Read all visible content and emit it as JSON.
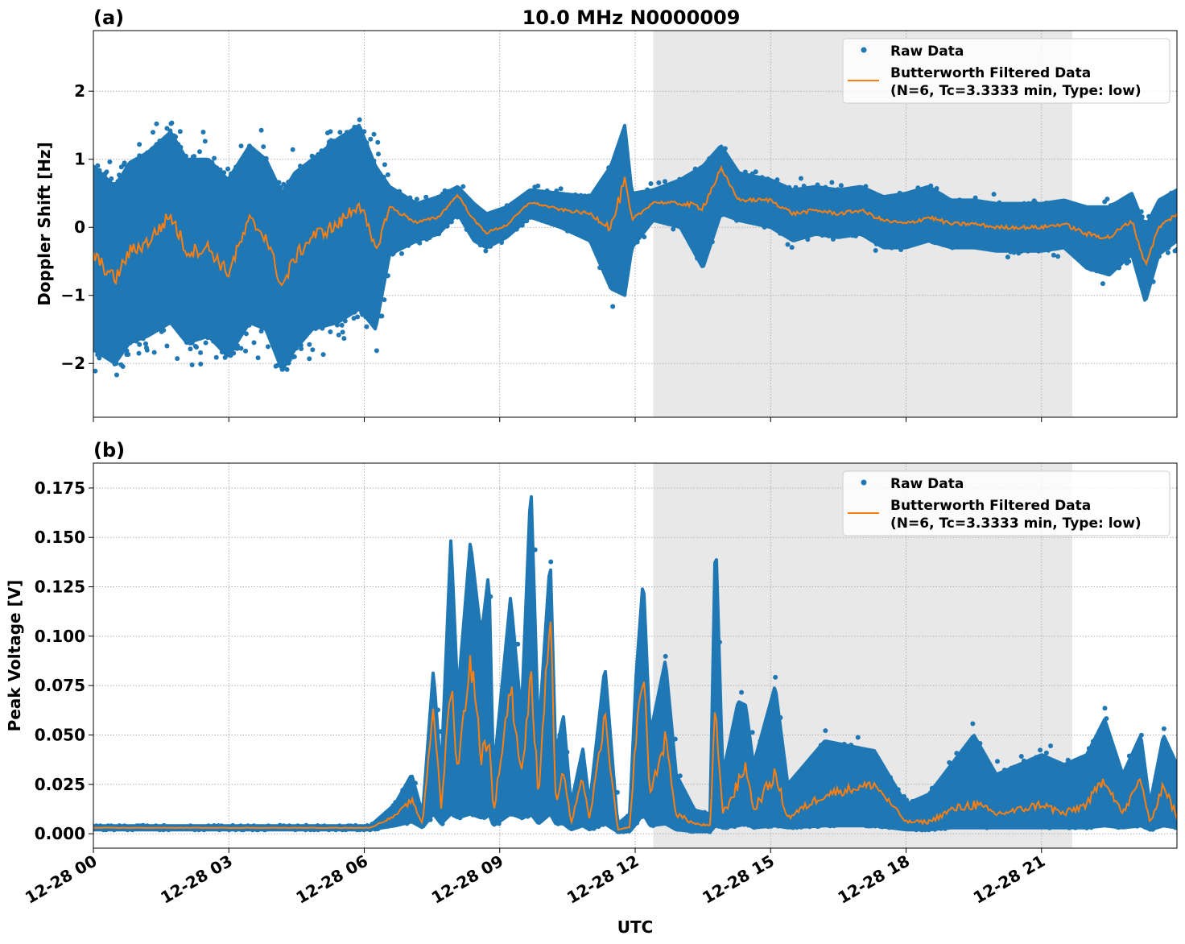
{
  "title": "10.0 MHz N0000009",
  "colors": {
    "raw": "#1f77b4",
    "filtered": "#ff7f0e",
    "shade": "#e8e8e8"
  },
  "chart_data": [
    {
      "type": "scatter",
      "panel_label": "(a)",
      "title": "10.0 MHz N0000009",
      "xlabel": "",
      "ylabel": "Doppler Shift [Hz]",
      "x_unit": "hours UTC on 12-28",
      "xlim": [
        0,
        24
      ],
      "ylim": [
        -2.79,
        2.89
      ],
      "yticks": [
        -2,
        -1,
        0,
        1,
        2
      ],
      "ytick_labels": [
        "−2",
        "−1",
        "0",
        "1",
        "2"
      ],
      "grid": true,
      "legend": "top-right",
      "shaded_span": [
        12.4,
        21.68
      ],
      "legend_entries": [
        "Raw Data",
        "Butterworth Filtered Data",
        "(N=6, Tc=3.3333 min, Type: low)"
      ],
      "filtered": {
        "name": "Butterworth Filtered Data (N=6, Tc=3.3333 min, Type: low)",
        "x": [
          0,
          0.48,
          0.8,
          1.2,
          1.71,
          2.07,
          2.55,
          2.98,
          3.46,
          3.82,
          4.18,
          4.46,
          4.85,
          5.41,
          5.89,
          6.25,
          6.56,
          7.16,
          7.64,
          8.07,
          8.43,
          8.71,
          9.15,
          9.67,
          10.34,
          11.0,
          11.46,
          11.77,
          11.93,
          12.4,
          13.0,
          13.5,
          13.9,
          14.3,
          15.0,
          15.5,
          16.0,
          16.5,
          17.0,
          17.5,
          18.0,
          18.5,
          19.0,
          19.5,
          20.0,
          21.0,
          21.5,
          22.0,
          22.5,
          23.0,
          23.3,
          23.6,
          24.0
        ],
        "y": [
          -0.41,
          -0.77,
          -0.36,
          -0.22,
          0.18,
          -0.36,
          -0.3,
          -0.68,
          0.1,
          -0.13,
          -0.88,
          -0.45,
          -0.13,
          0.03,
          0.37,
          -0.36,
          0.3,
          0.07,
          0.15,
          0.48,
          0.1,
          -0.08,
          0.03,
          0.37,
          0.26,
          0.2,
          0,
          0.67,
          0.1,
          0.37,
          0.35,
          0.3,
          0.85,
          0.4,
          0.4,
          0.2,
          0.25,
          0.2,
          0.25,
          0.1,
          0.05,
          0.15,
          0.05,
          0.05,
          0,
          0,
          0.05,
          -0.1,
          -0.15,
          0.1,
          -0.55,
          0,
          0.2
        ]
      },
      "raw": {
        "name": "Raw Data",
        "lo": [
          -1.8,
          -2.0,
          -1.7,
          -1.6,
          -1.4,
          -1.7,
          -1.6,
          -1.9,
          -1.4,
          -1.5,
          -2.1,
          -1.8,
          -1.5,
          -1.4,
          -1.2,
          -1.5,
          -0.4,
          -0.2,
          -0.1,
          0.2,
          -0.2,
          -0.3,
          -0.15,
          0.15,
          0.0,
          -0.2,
          -0.9,
          -1.0,
          -0.3,
          0.1,
          0.0,
          -0.6,
          0.2,
          0.1,
          0.0,
          -0.2,
          -0.1,
          -0.15,
          -0.1,
          -0.3,
          -0.3,
          -0.2,
          -0.3,
          -0.3,
          -0.35,
          -0.35,
          -0.3,
          -0.6,
          -0.7,
          -0.4,
          -1.1,
          -0.4,
          -0.2
        ],
        "hi": [
          0.9,
          0.6,
          0.95,
          1.1,
          1.4,
          1.0,
          1.0,
          0.7,
          1.2,
          1.0,
          0.5,
          0.8,
          1.0,
          1.3,
          1.5,
          0.9,
          0.6,
          0.35,
          0.45,
          0.6,
          0.35,
          0.2,
          0.3,
          0.55,
          0.5,
          0.45,
          0.9,
          1.5,
          0.5,
          0.55,
          0.7,
          0.9,
          1.2,
          0.8,
          0.7,
          0.55,
          0.6,
          0.55,
          0.6,
          0.45,
          0.5,
          0.6,
          0.4,
          0.4,
          0.35,
          0.35,
          0.4,
          0.3,
          0.3,
          0.5,
          0.0,
          0.4,
          0.55
        ]
      }
    },
    {
      "type": "scatter",
      "panel_label": "(b)",
      "xlabel": "UTC",
      "ylabel": "Peak Voltage [V]",
      "x_unit": "hours UTC on 12-28",
      "xlim": [
        0,
        24
      ],
      "ylim": [
        -0.0073,
        0.1876
      ],
      "yticks": [
        0,
        0.025,
        0.05,
        0.075,
        0.1,
        0.125,
        0.15,
        0.175
      ],
      "ytick_labels": [
        "0.000",
        "0.025",
        "0.050",
        "0.075",
        "0.100",
        "0.125",
        "0.150",
        "0.175"
      ],
      "xticks": [
        0,
        3,
        6,
        9,
        12,
        15,
        18,
        21
      ],
      "xtick_labels": [
        "12-28 00",
        "12-28 03",
        "12-28 06",
        "12-28 09",
        "12-28 12",
        "12-28 15",
        "12-28 18",
        "12-28 21"
      ],
      "grid": true,
      "legend": "top-right",
      "shaded_span": [
        12.4,
        21.68
      ],
      "legend_entries": [
        "Raw Data",
        "Butterworth Filtered Data",
        "(N=6, Tc=3.3333 min, Type: low)"
      ],
      "filtered": {
        "name": "Butterworth Filtered Data (N=6, Tc=3.3333 min, Type: low)",
        "x": [
          0,
          6.13,
          6.68,
          7.05,
          7.29,
          7.53,
          7.7,
          7.92,
          8.07,
          8.35,
          8.59,
          8.76,
          8.86,
          9.24,
          9.48,
          9.69,
          9.86,
          10.12,
          10.24,
          10.41,
          10.58,
          10.84,
          10.99,
          11.33,
          11.61,
          11.88,
          12.02,
          12.18,
          12.33,
          12.67,
          12.91,
          13.32,
          13.66,
          13.78,
          13.94,
          14.28,
          14.45,
          14.62,
          15.1,
          15.38,
          16.2,
          17.3,
          18.0,
          18.5,
          19.0,
          19.5,
          20.0,
          20.5,
          21.0,
          21.5,
          22.0,
          22.4,
          22.8,
          23.2,
          23.4,
          23.7,
          24.0
        ],
        "y": [
          0.003,
          0.003,
          0.009,
          0.017,
          0.005,
          0.066,
          0.012,
          0.077,
          0.032,
          0.09,
          0.04,
          0.05,
          0.01,
          0.075,
          0.03,
          0.077,
          0.02,
          0.115,
          0.015,
          0.032,
          0.005,
          0.028,
          0.007,
          0.059,
          0.002,
          0.003,
          0.05,
          0.083,
          0.02,
          0.048,
          0.01,
          0.005,
          0.004,
          0.064,
          0.01,
          0.025,
          0.035,
          0.012,
          0.03,
          0.008,
          0.02,
          0.025,
          0.006,
          0.006,
          0.012,
          0.015,
          0.01,
          0.012,
          0.015,
          0.01,
          0.015,
          0.028,
          0.01,
          0.028,
          0.005,
          0.025,
          0.008
        ]
      },
      "raw": {
        "name": "Raw Data",
        "lo": [
          0.002,
          0.002,
          0.004,
          0.006,
          0.003,
          0.01,
          0.005,
          0.01,
          0.008,
          0.01,
          0.008,
          0.01,
          0.004,
          0.01,
          0.008,
          0.01,
          0.005,
          0.01,
          0.005,
          0.005,
          0.002,
          0.004,
          0.002,
          0.005,
          0.001,
          0.001,
          0.005,
          0.01,
          0.004,
          0.005,
          0.002,
          0.001,
          0.001,
          0.004,
          0.003,
          0.004,
          0.005,
          0.003,
          0.004,
          0.003,
          0.004,
          0.004,
          0.002,
          0.002,
          0.003,
          0.003,
          0.003,
          0.003,
          0.003,
          0.003,
          0.003,
          0.004,
          0.003,
          0.004,
          0.002,
          0.004,
          0.003
        ],
        "hi": [
          0.004,
          0.004,
          0.015,
          0.03,
          0.01,
          0.083,
          0.03,
          0.15,
          0.07,
          0.148,
          0.1,
          0.133,
          0.03,
          0.12,
          0.06,
          0.178,
          0.05,
          0.14,
          0.04,
          0.06,
          0.015,
          0.043,
          0.015,
          0.085,
          0.005,
          0.01,
          0.08,
          0.13,
          0.05,
          0.088,
          0.03,
          0.012,
          0.01,
          0.155,
          0.03,
          0.067,
          0.065,
          0.035,
          0.075,
          0.025,
          0.047,
          0.042,
          0.015,
          0.02,
          0.035,
          0.05,
          0.03,
          0.035,
          0.04,
          0.035,
          0.04,
          0.058,
          0.03,
          0.05,
          0.015,
          0.05,
          0.035
        ]
      }
    }
  ]
}
